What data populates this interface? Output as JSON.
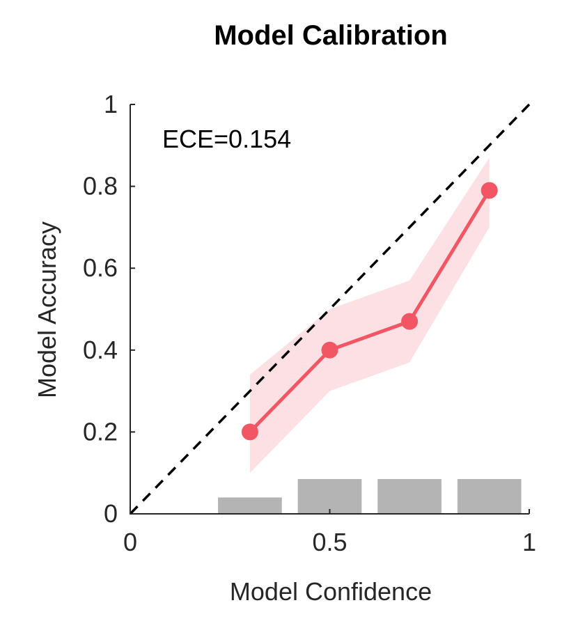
{
  "chart_data": {
    "type": "line",
    "title": "Model Calibration",
    "xlabel": "Model Confidence",
    "ylabel": "Model Accuracy",
    "xlim": [
      0,
      1
    ],
    "ylim": [
      0,
      1
    ],
    "xticks": [
      {
        "value": 0,
        "label": "0"
      },
      {
        "value": 0.5,
        "label": "0.5"
      },
      {
        "value": 1,
        "label": "1"
      }
    ],
    "yticks": [
      {
        "value": 0,
        "label": "0"
      },
      {
        "value": 0.2,
        "label": "0.2"
      },
      {
        "value": 0.4,
        "label": "0.4"
      },
      {
        "value": 0.6,
        "label": "0.6"
      },
      {
        "value": 0.8,
        "label": "0.8"
      },
      {
        "value": 1,
        "label": "1"
      }
    ],
    "annotation": "ECE=0.154",
    "reference_line": {
      "name": "perfect calibration",
      "x": [
        0,
        1
      ],
      "y": [
        0,
        1
      ],
      "style": "dashed",
      "color": "#000000"
    },
    "series": [
      {
        "name": "calibration",
        "color": "#f25563",
        "band_color": "#fde0e3",
        "x": [
          0.3,
          0.5,
          0.7,
          0.9
        ],
        "y": [
          0.2,
          0.4,
          0.47,
          0.79
        ],
        "lower": [
          0.1,
          0.3,
          0.37,
          0.7
        ],
        "upper": [
          0.34,
          0.5,
          0.57,
          0.87
        ]
      }
    ],
    "histogram": {
      "color": "#b4b4b4",
      "bins": [
        {
          "x0": 0.22,
          "x1": 0.38,
          "value": 0.04
        },
        {
          "x0": 0.42,
          "x1": 0.58,
          "value": 0.085
        },
        {
          "x0": 0.62,
          "x1": 0.78,
          "value": 0.085
        },
        {
          "x0": 0.82,
          "x1": 0.98,
          "value": 0.085
        }
      ]
    }
  }
}
